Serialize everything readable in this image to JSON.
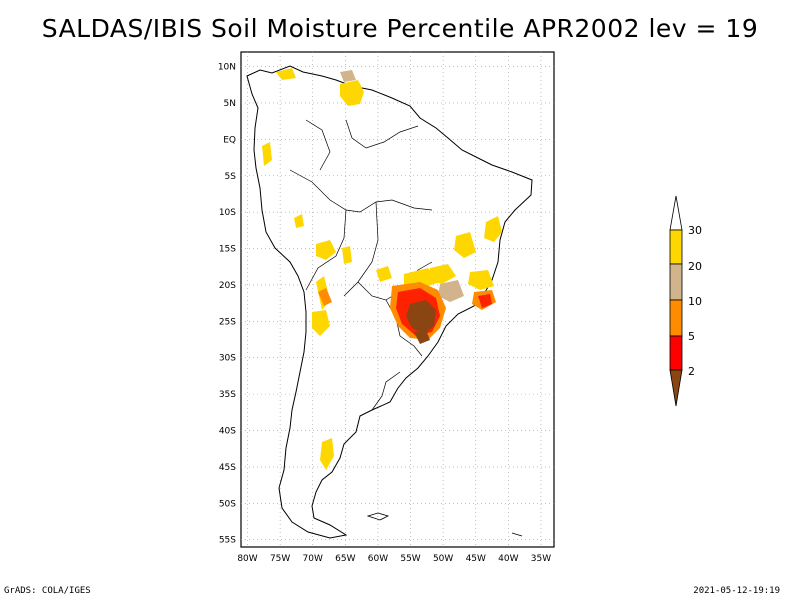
{
  "title": "SALDAS/IBIS Soil Moisture Percentile APR2002 lev = 19",
  "map": {
    "region": "South America",
    "lat_labels": [
      "10N",
      "5N",
      "EQ",
      "5S",
      "10S",
      "15S",
      "20S",
      "25S",
      "30S",
      "35S",
      "40S",
      "45S",
      "50S",
      "55S"
    ],
    "lat_values": [
      10,
      5,
      0,
      -5,
      -10,
      -15,
      -20,
      -25,
      -30,
      -35,
      -40,
      -45,
      -50,
      -55
    ],
    "lon_labels": [
      "80W",
      "75W",
      "70W",
      "65W",
      "60W",
      "55W",
      "50W",
      "45W",
      "40W",
      "35W"
    ],
    "lon_values": [
      -80,
      -75,
      -70,
      -65,
      -60,
      -55,
      -50,
      -45,
      -40,
      -35
    ],
    "extent": {
      "lon_min": -81,
      "lon_max": -33,
      "lat_min": -56,
      "lat_max": 12
    }
  },
  "legend": {
    "labels": [
      "2",
      "5",
      "10",
      "20",
      "30"
    ],
    "colors": [
      "#8b4513",
      "#ff0000",
      "#ff8c00",
      "#d2b48c",
      "#ffd700",
      "#ffffff"
    ]
  },
  "footer": {
    "left": "GrADS: COLA/IGES",
    "right": "2021-05-12-19:19"
  }
}
